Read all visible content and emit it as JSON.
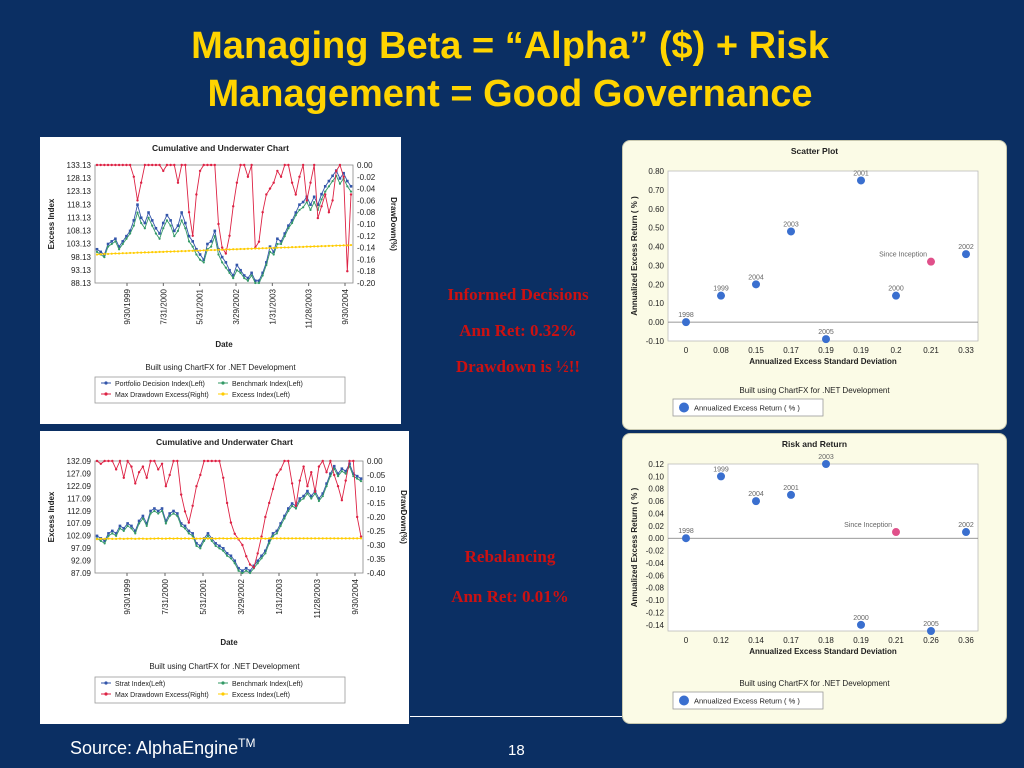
{
  "slide": {
    "title_line1": "Managing Beta = “Alpha” ($) + Risk",
    "title_line2": "Management = Good Governance",
    "source_label": "Source: AlphaEngine",
    "source_sup": "TM",
    "page_number": "18"
  },
  "annotations": {
    "informed": [
      "Informed Decisions",
      "Ann Ret: 0.32%",
      "Drawdown is ½!!"
    ],
    "rebalancing": [
      "Rebalancing",
      "Ann Ret: 0.01%"
    ]
  },
  "colors": {
    "background": "#0b2f63",
    "title": "#ffd400",
    "annotation": "#cc1111",
    "blue_series": "#3355aa",
    "red_series": "#dd2244",
    "green_series": "#339966",
    "yellow_series": "#ffcc00",
    "scatter_point": "#3a6fcf",
    "highlight_point": "#e0508a"
  },
  "chart_data": [
    {
      "type": "line",
      "title": "Cumulative and Underwater Chart",
      "xlabel": "Date",
      "ylabel": "Excess Index",
      "ylabel_right": "DrawDown(%)",
      "footer": "Built using ChartFX for .NET Development",
      "x_ticks": [
        "9/30/1999",
        "7/31/2000",
        "5/31/2001",
        "3/29/2002",
        "1/31/2003",
        "11/28/2003",
        "9/30/2004"
      ],
      "y_ticks": [
        "133.13",
        "128.13",
        "123.13",
        "118.13",
        "113.13",
        "108.13",
        "103.13",
        "98.13",
        "93.13",
        "88.13"
      ],
      "y2_ticks": [
        "0.00",
        "-0.02",
        "-0.04",
        "-0.06",
        "-0.08",
        "-0.10",
        "-0.12",
        "-0.14",
        "-0.16",
        "-0.18",
        "-0.20"
      ],
      "ylim": [
        88.13,
        133.13
      ],
      "y2lim": [
        -0.2,
        0.0
      ],
      "legend": [
        "Portfolio Decision Index(Left)",
        "Benchmark Index(Left)",
        "Max Drawdown Excess(Right)",
        "Excess Index(Left)"
      ],
      "series": [
        {
          "name": "Portfolio Decision Index(Left)",
          "axis": "left",
          "values": [
            101,
            100,
            99,
            103,
            104,
            105,
            102,
            104,
            106,
            108,
            112,
            118,
            113,
            111,
            115,
            112,
            109,
            107,
            111,
            114,
            112,
            108,
            110,
            115,
            111,
            106,
            104,
            101,
            99,
            97,
            103,
            104,
            108,
            101,
            98,
            96,
            93,
            91,
            95,
            93,
            91,
            90,
            92,
            89,
            89,
            92,
            96,
            102,
            100,
            105,
            104,
            107,
            110,
            112,
            115,
            118,
            119,
            121,
            118,
            121,
            118,
            122,
            125,
            127,
            129,
            131,
            128,
            130,
            127,
            125
          ]
        },
        {
          "name": "Benchmark Index(Left)",
          "axis": "left",
          "values": [
            100,
            99,
            98,
            102,
            103,
            104,
            101,
            103,
            105,
            107,
            110,
            115,
            111,
            109,
            113,
            110,
            107,
            105,
            109,
            112,
            110,
            106,
            108,
            112,
            109,
            104,
            102,
            99,
            97,
            96,
            101,
            102,
            106,
            99,
            96,
            94,
            92,
            90,
            93,
            92,
            90,
            89,
            91,
            88,
            88,
            91,
            95,
            100,
            99,
            103,
            103,
            106,
            109,
            111,
            114,
            116,
            117,
            119,
            116,
            119,
            116,
            120,
            123,
            125,
            127,
            129,
            126,
            128,
            125,
            123
          ]
        },
        {
          "name": "Max Drawdown Excess(Right)",
          "axis": "right",
          "values": [
            0,
            0,
            0,
            0,
            0,
            0,
            0,
            0,
            0,
            0,
            -0.02,
            -0.06,
            -0.03,
            0,
            0,
            0,
            0,
            0,
            -0.01,
            0,
            0,
            0,
            -0.03,
            0,
            0,
            -0.08,
            -0.12,
            -0.05,
            -0.01,
            0,
            0,
            0,
            0,
            -0.1,
            -0.14,
            -0.15,
            -0.12,
            -0.07,
            -0.03,
            0,
            0,
            -0.02,
            0,
            -0.14,
            -0.13,
            -0.08,
            -0.05,
            -0.04,
            -0.03,
            -0.01,
            -0.02,
            0,
            0,
            -0.03,
            -0.05,
            -0.02,
            0,
            -0.06,
            -0.03,
            0,
            -0.09,
            -0.07,
            -0.05,
            -0.08,
            -0.06,
            -0.01,
            0,
            -0.02,
            -0.18,
            -0.05
          ]
        },
        {
          "name": "Excess Index(Left)",
          "axis": "left",
          "values": [
            99,
            99.1,
            99.2,
            99.2,
            99.3,
            99.4,
            99.4,
            99.5,
            99.5,
            99.6,
            99.6,
            99.7,
            99.7,
            99.8,
            99.8,
            99.9,
            99.9,
            100,
            100,
            100.1,
            100.1,
            100.2,
            100.2,
            100.3,
            100.3,
            100.4,
            100.4,
            100.5,
            100.5,
            100.6,
            100.6,
            100.7,
            100.7,
            100.8,
            100.8,
            100.9,
            100.9,
            101,
            101,
            101.1,
            101.1,
            101.2,
            101.2,
            101.3,
            101.3,
            101.4,
            101.4,
            101.5,
            101.5,
            101.6,
            101.6,
            101.7,
            101.7,
            101.8,
            101.8,
            101.9,
            101.9,
            102,
            102,
            102.1,
            102.1,
            102.2,
            102.2,
            102.3,
            102.3,
            102.4,
            102.4,
            102.5,
            102.5,
            102.6
          ]
        }
      ]
    },
    {
      "type": "line",
      "title": "Cumulative and Underwater Chart",
      "xlabel": "Date",
      "ylabel": "Excess Index",
      "ylabel_right": "DrawDown(%)",
      "footer": "Built using ChartFX for .NET Development",
      "x_ticks": [
        "9/30/1999",
        "7/31/2000",
        "5/31/2001",
        "3/29/2002",
        "1/31/2003",
        "11/28/2003",
        "9/30/2004"
      ],
      "y_ticks": [
        "132.09",
        "127.09",
        "122.09",
        "117.09",
        "112.09",
        "107.09",
        "102.09",
        "97.09",
        "92.09",
        "87.09"
      ],
      "y2_ticks": [
        "0.00",
        "-0.05",
        "-0.10",
        "-0.15",
        "-0.20",
        "-0.25",
        "-0.30",
        "-0.35",
        "-0.40"
      ],
      "ylim": [
        87.09,
        132.09
      ],
      "y2lim": [
        -0.4,
        0.0
      ],
      "legend": [
        "Strat Index(Left)",
        "Benchmark Index(Left)",
        "Max Drawdown Excess(Right)",
        "Excess Index(Left)"
      ],
      "series": [
        {
          "name": "Strat Index(Left)",
          "axis": "left",
          "values": [
            102,
            101,
            100,
            103,
            104,
            103,
            106,
            105,
            107,
            106,
            104,
            108,
            110,
            107,
            112,
            113,
            112,
            113,
            108,
            111,
            112,
            111,
            107,
            106,
            104,
            103,
            99,
            98,
            101,
            103,
            101,
            99,
            98,
            97,
            95,
            94,
            92,
            89,
            88,
            89,
            88,
            90,
            92,
            94,
            96,
            100,
            103,
            104,
            107,
            110,
            113,
            115,
            114,
            117,
            118,
            120,
            118,
            120,
            117,
            119,
            123,
            127,
            130,
            127,
            129,
            128,
            131,
            127,
            126,
            125
          ]
        },
        {
          "name": "Benchmark Index(Left)",
          "axis": "left",
          "values": [
            101,
            100,
            99,
            102,
            103,
            102,
            105,
            104,
            106,
            105,
            103,
            107,
            109,
            106,
            111,
            112,
            111,
            112,
            107,
            110,
            111,
            110,
            106,
            105,
            103,
            102,
            98,
            97,
            100,
            102,
            100,
            98,
            97,
            96,
            94,
            93,
            91,
            88,
            87,
            88,
            87,
            89,
            91,
            93,
            95,
            99,
            102,
            103,
            106,
            109,
            112,
            114,
            113,
            116,
            117,
            119,
            117,
            119,
            116,
            118,
            122,
            126,
            129,
            126,
            128,
            127,
            130,
            126,
            125,
            124
          ]
        },
        {
          "name": "Max Drawdown Excess(Right)",
          "axis": "right",
          "values": [
            0,
            -0.01,
            0,
            0,
            0,
            -0.03,
            0,
            -0.06,
            0,
            -0.02,
            -0.08,
            -0.04,
            -0.02,
            -0.06,
            0,
            0,
            -0.03,
            -0.01,
            -0.09,
            -0.05,
            0,
            0,
            -0.12,
            -0.18,
            -0.22,
            -0.16,
            -0.09,
            -0.05,
            0,
            0,
            0,
            0,
            0,
            -0.06,
            -0.15,
            -0.22,
            -0.26,
            -0.28,
            -0.3,
            -0.34,
            -0.37,
            -0.38,
            -0.33,
            -0.27,
            -0.2,
            -0.15,
            -0.1,
            -0.05,
            -0.03,
            0,
            0,
            -0.08,
            -0.16,
            -0.07,
            -0.02,
            -0.09,
            -0.04,
            -0.11,
            -0.02,
            0,
            -0.04,
            0,
            -0.05,
            -0.09,
            -0.14,
            -0.07,
            0,
            0,
            -0.2,
            -0.27
          ]
        },
        {
          "name": "Excess Index(Left)",
          "axis": "left",
          "values": [
            100.7,
            100.8,
            100.8,
            100.9,
            100.8,
            100.8,
            100.9,
            100.8,
            100.9,
            100.9,
            100.8,
            100.9,
            100.9,
            100.8,
            100.9,
            100.9,
            101,
            100.9,
            100.9,
            101,
            100.9,
            101,
            100.9,
            101,
            100.9,
            101,
            100.9,
            100.9,
            101,
            100.9,
            101,
            100.9,
            101,
            101,
            100.9,
            101,
            101,
            100.9,
            101,
            101,
            100.9,
            101,
            101,
            101,
            100.9,
            101,
            101,
            101,
            101,
            101,
            101,
            101,
            101,
            101,
            101,
            101,
            101,
            101,
            101,
            101,
            101,
            101,
            101,
            101,
            101,
            101,
            101,
            101,
            101,
            101
          ]
        }
      ]
    },
    {
      "type": "scatter",
      "title": "Scatter Plot",
      "xlabel": "Annualized Excess Standard Deviation",
      "ylabel": "Annualized Excess Return ( % )",
      "footer": "Built using ChartFX for .NET Development",
      "legend": [
        "Annualized Excess Return ( % )"
      ],
      "x_ticks": [
        "0",
        "0.08",
        "0.15",
        "0.17",
        "0.19",
        "0.19",
        "0.2",
        "0.21",
        "0.33"
      ],
      "y_ticks": [
        "0.80",
        "0.70",
        "0.60",
        "0.50",
        "0.40",
        "0.30",
        "0.20",
        "0.10",
        "0.00",
        "-0.10"
      ],
      "ylim": [
        -0.1,
        0.8
      ],
      "points": [
        {
          "label": "1998",
          "x_index": 0,
          "y": 0.0,
          "highlight": false
        },
        {
          "label": "1999",
          "x_index": 1,
          "y": 0.14,
          "highlight": false
        },
        {
          "label": "2004",
          "x_index": 2,
          "y": 0.2,
          "highlight": false
        },
        {
          "label": "2003",
          "x_index": 3,
          "y": 0.48,
          "highlight": false
        },
        {
          "label": "2005",
          "x_index": 4,
          "y": -0.09,
          "highlight": false
        },
        {
          "label": "2001",
          "x_index": 5,
          "y": 0.75,
          "highlight": false
        },
        {
          "label": "2000",
          "x_index": 6,
          "y": 0.14,
          "highlight": false
        },
        {
          "label": "Since Inception",
          "x_index": 7,
          "y": 0.32,
          "highlight": true
        },
        {
          "label": "2002",
          "x_index": 8,
          "y": 0.36,
          "highlight": false
        }
      ]
    },
    {
      "type": "scatter",
      "title": "Risk and Return",
      "xlabel": "Annualized Excess Standard Deviation",
      "ylabel": "Annualized Excess Return ( % )",
      "footer": "Built using ChartFX for .NET Development",
      "legend": [
        "Annualized Excess Return ( % )"
      ],
      "x_ticks": [
        "0",
        "0.12",
        "0.14",
        "0.17",
        "0.18",
        "0.19",
        "0.21",
        "0.26",
        "0.36"
      ],
      "y_ticks": [
        "0.12",
        "0.10",
        "0.08",
        "0.06",
        "0.04",
        "0.02",
        "0.00",
        "-0.02",
        "-0.04",
        "-0.06",
        "-0.08",
        "-0.10",
        "-0.12",
        "-0.14"
      ],
      "ylim": [
        -0.15,
        0.12
      ],
      "points": [
        {
          "label": "1998",
          "x_index": 0,
          "y": 0.0,
          "highlight": false
        },
        {
          "label": "1999",
          "x_index": 1,
          "y": 0.1,
          "highlight": false
        },
        {
          "label": "2004",
          "x_index": 2,
          "y": 0.06,
          "highlight": false
        },
        {
          "label": "2001",
          "x_index": 3,
          "y": 0.07,
          "highlight": false
        },
        {
          "label": "2003",
          "x_index": 4,
          "y": 0.12,
          "highlight": false
        },
        {
          "label": "2000",
          "x_index": 5,
          "y": -0.14,
          "highlight": false
        },
        {
          "label": "Since Inception",
          "x_index": 6,
          "y": 0.01,
          "highlight": true
        },
        {
          "label": "2005",
          "x_index": 7,
          "y": -0.15,
          "highlight": false
        },
        {
          "label": "2002",
          "x_index": 8,
          "y": 0.01,
          "highlight": false
        }
      ]
    }
  ]
}
